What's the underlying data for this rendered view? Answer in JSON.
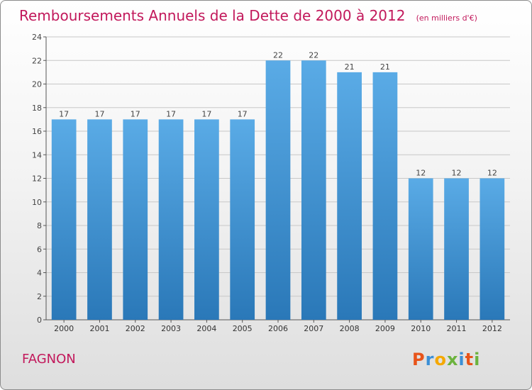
{
  "header": {
    "title": "Remboursements Annuels de la Dette de 2000 à 2012",
    "unit_note": "(en milliers d'€)"
  },
  "footer": {
    "commune": "FAGNON",
    "logo_text": "Proxiti",
    "logo_colors": [
      "#e8541a",
      "#3b8fd6",
      "#f5a800",
      "#6cb33e",
      "#3b8fd6",
      "#e8541a",
      "#6cb33e"
    ]
  },
  "colors": {
    "accent": "#c2185b",
    "bar_top": "#5aabe6",
    "bar_bottom": "#2a78b8",
    "grid": "#c8c8c8",
    "axis": "#555555"
  },
  "chart_data": {
    "type": "bar",
    "title": "Remboursements Annuels de la Dette de 2000 à 2012",
    "xlabel": "",
    "ylabel": "",
    "categories": [
      "2000",
      "2001",
      "2002",
      "2003",
      "2004",
      "2005",
      "2006",
      "2007",
      "2008",
      "2009",
      "2010",
      "2011",
      "2012"
    ],
    "values": [
      17,
      17,
      17,
      17,
      17,
      17,
      22,
      22,
      21,
      21,
      12,
      12,
      12
    ],
    "ylim": [
      0,
      24
    ],
    "yticks": [
      0,
      2,
      4,
      6,
      8,
      10,
      12,
      14,
      16,
      18,
      20,
      22,
      24
    ],
    "grid": true
  }
}
